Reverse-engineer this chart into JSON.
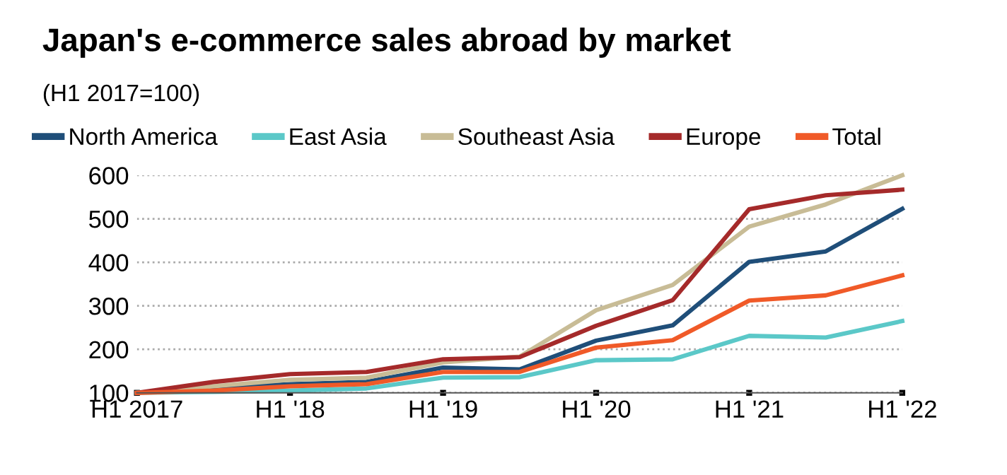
{
  "chart_data": {
    "type": "line",
    "title": "Japan's e-commerce sales abroad by market",
    "subtitle": "(H1 2017=100)",
    "categories": [
      "H1 2017",
      null,
      "H1 '18",
      null,
      "H1 '19",
      null,
      "H1 '20",
      null,
      "H1 '21",
      null,
      "H1 '22"
    ],
    "series": [
      {
        "name": "North America",
        "color": "#1f4e79",
        "values": [
          100,
          112,
          120,
          125,
          158,
          154,
          220,
          255,
          401,
          425,
          523
        ]
      },
      {
        "name": "East Asia",
        "color": "#5bc8c8",
        "values": [
          100,
          102,
          105,
          110,
          135,
          136,
          175,
          177,
          231,
          227,
          265
        ]
      },
      {
        "name": "Southeast Asia",
        "color": "#c8bc96",
        "values": [
          100,
          115,
          130,
          135,
          170,
          183,
          290,
          348,
          482,
          533,
          600
        ]
      },
      {
        "name": "Europe",
        "color": "#a52a2a",
        "values": [
          100,
          125,
          143,
          148,
          177,
          182,
          254,
          313,
          522,
          554,
          567
        ]
      },
      {
        "name": "Total",
        "color": "#f05a28",
        "values": [
          100,
          105,
          115,
          120,
          148,
          148,
          204,
          221,
          312,
          324,
          370
        ]
      }
    ],
    "ylim": [
      100,
      600
    ],
    "yticks": [
      100,
      200,
      300,
      400,
      500,
      600
    ],
    "grid": "y",
    "legend": "top",
    "marker": "none",
    "line_style": "solid"
  }
}
